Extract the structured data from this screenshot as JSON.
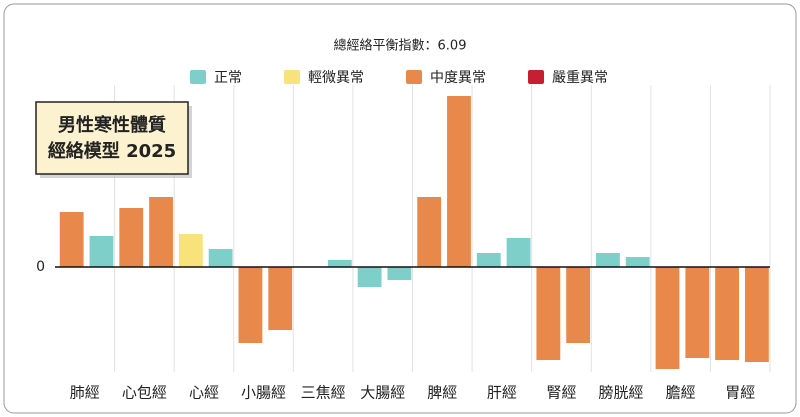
{
  "chart_data": {
    "type": "bar",
    "title": "總經絡平衡指數：6.09",
    "badge": [
      "男性寒性體質",
      "經絡模型 2025"
    ],
    "legend": [
      {
        "name": "正常",
        "color": "#7ecfc9"
      },
      {
        "name": "輕微異常",
        "color": "#f8e27c"
      },
      {
        "name": "中度異常",
        "color": "#e8894b"
      },
      {
        "name": "嚴重異常",
        "color": "#c61f31"
      }
    ],
    "categories": [
      "肺經",
      "心包經",
      "心經",
      "小腸經",
      "三焦經",
      "大腸經",
      "脾經",
      "肝經",
      "腎經",
      "膀胱經",
      "膽經",
      "胃經"
    ],
    "bars": [
      {
        "values": [
          55,
          59,
          33,
          -76,
          null,
          -20,
          70,
          14,
          -93,
          14,
          -102,
          -93
        ],
        "colors": [
          "#e8894b",
          "#e8894b",
          "#f8e27c",
          "#e8894b",
          null,
          "#7ecfc9",
          "#e8894b",
          "#7ecfc9",
          "#e8894b",
          "#7ecfc9",
          "#e8894b",
          "#e8894b"
        ]
      },
      {
        "values": [
          31,
          70,
          18,
          -63,
          7,
          -13,
          171,
          29,
          -76,
          10,
          -91,
          -95
        ],
        "colors": [
          "#7ecfc9",
          "#e8894b",
          "#7ecfc9",
          "#e8894b",
          "#7ecfc9",
          "#7ecfc9",
          "#e8894b",
          "#7ecfc9",
          "#e8894b",
          "#7ecfc9",
          "#e8894b",
          "#e8894b"
        ]
      }
    ],
    "ylim": [
      -105,
      182
    ],
    "yticks": [
      0
    ],
    "grid": true
  }
}
